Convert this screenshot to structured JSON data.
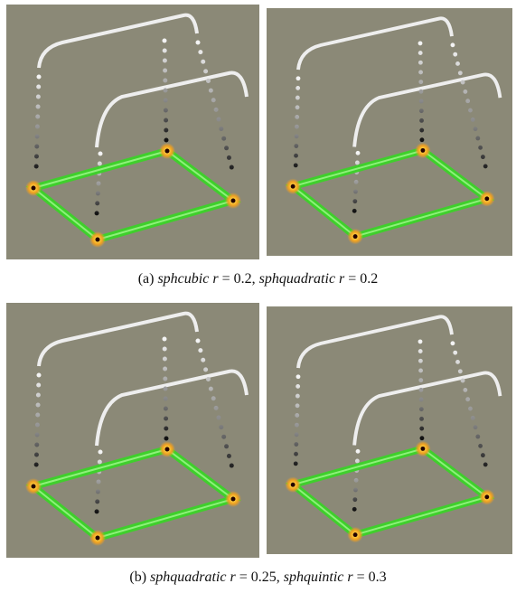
{
  "figure": {
    "captions": [
      {
        "segments": [
          {
            "text": "(a)",
            "italic": false
          },
          {
            "text": "sphcubic r",
            "italic": true
          },
          {
            "text": "= 0.2,",
            "italic": false
          },
          {
            "text": "sphquadratic r",
            "italic": true
          },
          {
            "text": "= 0.2",
            "italic": false
          }
        ]
      },
      {
        "segments": [
          {
            "text": "(b)",
            "italic": false
          },
          {
            "text": "sphquadratic r",
            "italic": true
          },
          {
            "text": "= 0.25,",
            "italic": false
          },
          {
            "text": "sphquintic r",
            "italic": true
          },
          {
            "text": "= 0.3",
            "italic": false
          }
        ]
      }
    ]
  }
}
